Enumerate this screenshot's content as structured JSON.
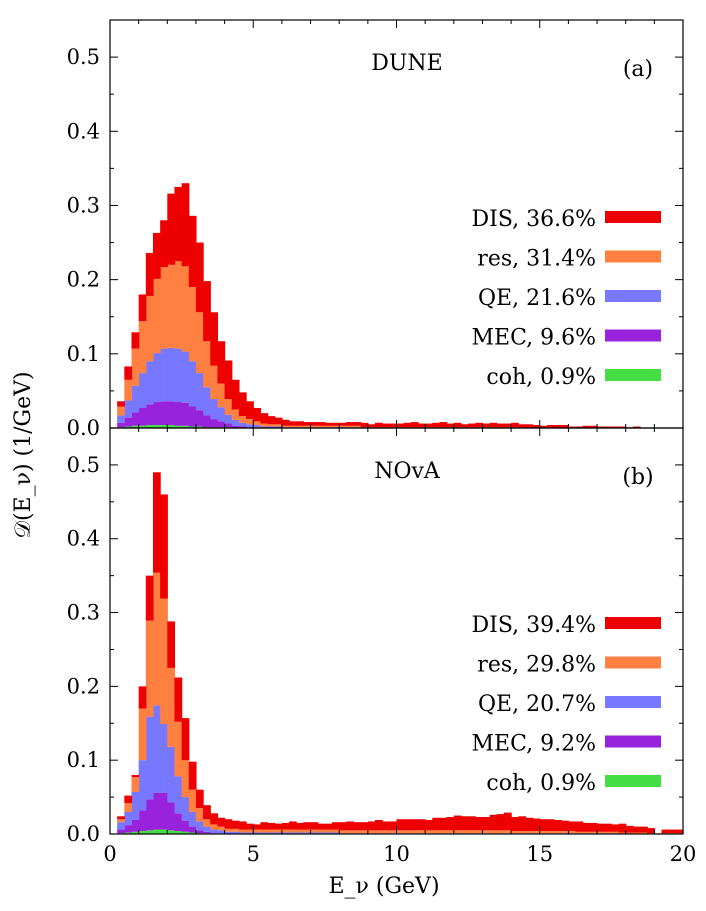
{
  "chart_data": [
    {
      "type": "bar",
      "stacked": true,
      "title": "DUNE",
      "panel_label": "(a)",
      "x_label": "E_ν (GeV)",
      "y_label": "𝒟(E_ν) (1/GeV)",
      "xlim": [
        0,
        20
      ],
      "ylim": [
        0,
        0.55
      ],
      "x_ticks": [
        0,
        5,
        10,
        15,
        20
      ],
      "y_ticks": [
        0.0,
        0.1,
        0.2,
        0.3,
        0.4,
        0.5
      ],
      "bin_width": 0.25,
      "x": [
        0.125,
        0.375,
        0.625,
        0.875,
        1.125,
        1.375,
        1.625,
        1.875,
        2.125,
        2.375,
        2.625,
        2.875,
        3.125,
        3.375,
        3.625,
        3.875,
        4.125,
        4.375,
        4.625,
        4.875,
        5.125,
        5.375,
        5.625,
        5.875,
        6.125,
        6.375,
        6.625,
        6.875,
        7.125,
        7.375,
        7.625,
        7.875,
        8.125,
        8.375,
        8.625,
        8.875,
        9.125,
        9.375,
        9.625,
        9.875,
        10.125,
        10.375,
        10.625,
        10.875,
        11.125,
        11.375,
        11.625,
        11.875,
        12.125,
        12.375,
        12.625,
        12.875,
        13.125,
        13.375,
        13.625,
        13.875,
        14.125,
        14.375,
        14.625,
        14.875,
        15.125,
        15.375,
        15.625,
        15.875,
        16.125,
        16.375,
        16.625,
        16.875,
        17.125,
        17.375,
        17.625,
        17.875,
        18.125,
        18.375,
        18.625,
        18.875,
        19.125,
        19.375,
        19.625,
        19.875
      ],
      "series": [
        {
          "name": "coh, 0.9%",
          "color": "#44dd44",
          "values": [
            0.0,
            0.001,
            0.002,
            0.003,
            0.003,
            0.004,
            0.004,
            0.004,
            0.004,
            0.003,
            0.003,
            0.002,
            0.002,
            0.001,
            0.001,
            0.001,
            0.001,
            0,
            0,
            0,
            0,
            0,
            0,
            0,
            0,
            0,
            0,
            0,
            0,
            0,
            0,
            0,
            0,
            0,
            0,
            0,
            0,
            0,
            0,
            0,
            0,
            0,
            0,
            0,
            0,
            0,
            0,
            0,
            0,
            0,
            0,
            0,
            0,
            0,
            0,
            0,
            0,
            0,
            0,
            0,
            0,
            0,
            0,
            0,
            0,
            0,
            0,
            0,
            0,
            0,
            0,
            0,
            0,
            0,
            0,
            0,
            0,
            0,
            0,
            0
          ]
        },
        {
          "name": "MEC, 9.6%",
          "color": "#9922dd",
          "values": [
            0.0,
            0.006,
            0.012,
            0.018,
            0.024,
            0.028,
            0.031,
            0.032,
            0.032,
            0.032,
            0.031,
            0.027,
            0.022,
            0.016,
            0.011,
            0.008,
            0.005,
            0.003,
            0.002,
            0.001,
            0.001,
            0,
            0,
            0,
            0,
            0,
            0,
            0,
            0,
            0,
            0,
            0,
            0,
            0,
            0,
            0,
            0,
            0,
            0,
            0,
            0,
            0,
            0,
            0,
            0,
            0,
            0,
            0,
            0,
            0,
            0,
            0,
            0,
            0,
            0,
            0,
            0,
            0,
            0,
            0,
            0,
            0,
            0,
            0,
            0,
            0,
            0,
            0,
            0,
            0,
            0,
            0,
            0,
            0,
            0,
            0,
            0,
            0,
            0,
            0
          ]
        },
        {
          "name": "QE, 21.6%",
          "color": "#7777ff",
          "values": [
            0.0,
            0.01,
            0.023,
            0.036,
            0.047,
            0.058,
            0.066,
            0.071,
            0.072,
            0.072,
            0.069,
            0.061,
            0.05,
            0.038,
            0.027,
            0.019,
            0.012,
            0.008,
            0.005,
            0.004,
            0.003,
            0.002,
            0.002,
            0.002,
            0.001,
            0.001,
            0.001,
            0.001,
            0.001,
            0.001,
            0.001,
            0.001,
            0.001,
            0.001,
            0.001,
            0,
            0,
            0,
            0,
            0,
            0,
            0,
            0,
            0,
            0,
            0,
            0,
            0,
            0,
            0,
            0,
            0,
            0,
            0,
            0,
            0,
            0,
            0,
            0,
            0,
            0,
            0,
            0,
            0,
            0,
            0,
            0,
            0,
            0,
            0,
            0,
            0,
            0,
            0,
            0,
            0,
            0,
            0,
            0,
            0
          ]
        },
        {
          "name": "res, 31.4%",
          "color": "#ff8040",
          "values": [
            0.0,
            0.012,
            0.028,
            0.05,
            0.07,
            0.088,
            0.1,
            0.11,
            0.112,
            0.118,
            0.115,
            0.1,
            0.082,
            0.062,
            0.045,
            0.032,
            0.021,
            0.014,
            0.009,
            0.007,
            0.005,
            0.004,
            0.003,
            0.003,
            0.002,
            0.002,
            0.002,
            0.002,
            0.002,
            0.002,
            0.002,
            0.002,
            0.002,
            0.002,
            0.002,
            0.001,
            0.001,
            0.001,
            0.001,
            0.001,
            0.001,
            0.001,
            0.001,
            0.001,
            0.001,
            0.001,
            0.001,
            0.001,
            0.001,
            0.001,
            0.001,
            0.001,
            0.001,
            0.001,
            0.001,
            0.001,
            0.001,
            0.001,
            0,
            0,
            0,
            0,
            0,
            0,
            0,
            0,
            0,
            0,
            0,
            0,
            0,
            0,
            0,
            0,
            0,
            0,
            0,
            0,
            0,
            0
          ]
        },
        {
          "name": "DIS, 36.6%",
          "color": "#ee0000",
          "values": [
            0.0,
            0.007,
            0.018,
            0.022,
            0.036,
            0.058,
            0.062,
            0.063,
            0.096,
            0.1,
            0.112,
            0.096,
            0.094,
            0.081,
            0.072,
            0.057,
            0.052,
            0.04,
            0.032,
            0.024,
            0.018,
            0.014,
            0.011,
            0.009,
            0.008,
            0.006,
            0.006,
            0.005,
            0.005,
            0.005,
            0.004,
            0.004,
            0.004,
            0.005,
            0.005,
            0.006,
            0.004,
            0.006,
            0.005,
            0.005,
            0.005,
            0.006,
            0.007,
            0.005,
            0.005,
            0.006,
            0.007,
            0.005,
            0.006,
            0.004,
            0.005,
            0.006,
            0.005,
            0.006,
            0.005,
            0.005,
            0.006,
            0.004,
            0.005,
            0.004,
            0.003,
            0.004,
            0.004,
            0.004,
            0.002,
            0.002,
            0.003,
            0.003,
            0.002,
            0.002,
            0.002,
            0.002,
            0.001,
            0.002,
            0,
            0,
            0,
            0,
            0,
            0
          ]
        }
      ]
    },
    {
      "type": "bar",
      "stacked": true,
      "title": "NOvA",
      "panel_label": "(b)",
      "x_label": "E_ν (GeV)",
      "y_label": "𝒟(E_ν) (1/GeV)",
      "xlim": [
        0,
        20
      ],
      "ylim": [
        0,
        0.55
      ],
      "x_ticks": [
        0,
        5,
        10,
        15,
        20
      ],
      "y_ticks": [
        0.0,
        0.1,
        0.2,
        0.3,
        0.4,
        0.5
      ],
      "bin_width": 0.25,
      "x": [
        0.125,
        0.375,
        0.625,
        0.875,
        1.125,
        1.375,
        1.625,
        1.875,
        2.125,
        2.375,
        2.625,
        2.875,
        3.125,
        3.375,
        3.625,
        3.875,
        4.125,
        4.375,
        4.625,
        4.875,
        5.125,
        5.375,
        5.625,
        5.875,
        6.125,
        6.375,
        6.625,
        6.875,
        7.125,
        7.375,
        7.625,
        7.875,
        8.125,
        8.375,
        8.625,
        8.875,
        9.125,
        9.375,
        9.625,
        9.875,
        10.125,
        10.375,
        10.625,
        10.875,
        11.125,
        11.375,
        11.625,
        11.875,
        12.125,
        12.375,
        12.625,
        12.875,
        13.125,
        13.375,
        13.625,
        13.875,
        14.125,
        14.375,
        14.625,
        14.875,
        15.125,
        15.375,
        15.625,
        15.875,
        16.125,
        16.375,
        16.625,
        16.875,
        17.125,
        17.375,
        17.625,
        17.875,
        18.125,
        18.375,
        18.625,
        18.875,
        19.125,
        19.375,
        19.625,
        19.875
      ],
      "series": [
        {
          "name": "coh, 0.9%",
          "color": "#44dd44",
          "values": [
            0.0,
            0.001,
            0.002,
            0.003,
            0.004,
            0.005,
            0.006,
            0.006,
            0.005,
            0.004,
            0.003,
            0.002,
            0.001,
            0.001,
            0,
            0,
            0,
            0,
            0,
            0,
            0,
            0,
            0,
            0,
            0,
            0,
            0,
            0,
            0,
            0,
            0,
            0,
            0,
            0,
            0,
            0,
            0,
            0,
            0,
            0,
            0,
            0,
            0,
            0,
            0,
            0,
            0,
            0,
            0,
            0,
            0,
            0,
            0,
            0,
            0,
            0,
            0,
            0,
            0,
            0,
            0,
            0,
            0,
            0,
            0,
            0,
            0,
            0,
            0,
            0,
            0,
            0,
            0,
            0,
            0,
            0,
            0,
            0,
            0,
            0
          ]
        },
        {
          "name": "MEC, 9.2%",
          "color": "#9922dd",
          "values": [
            0.0,
            0.005,
            0.01,
            0.016,
            0.028,
            0.042,
            0.05,
            0.05,
            0.038,
            0.024,
            0.015,
            0.008,
            0.004,
            0.002,
            0.001,
            0.001,
            0,
            0,
            0,
            0,
            0,
            0,
            0,
            0,
            0,
            0,
            0,
            0,
            0,
            0,
            0,
            0,
            0,
            0,
            0,
            0,
            0,
            0,
            0,
            0,
            0,
            0,
            0,
            0,
            0,
            0,
            0,
            0,
            0,
            0,
            0,
            0,
            0,
            0,
            0,
            0,
            0,
            0,
            0,
            0,
            0,
            0,
            0,
            0,
            0,
            0,
            0,
            0,
            0,
            0,
            0,
            0,
            0,
            0,
            0,
            0,
            0,
            0,
            0,
            0
          ]
        },
        {
          "name": "QE, 20.7%",
          "color": "#7777ff",
          "values": [
            0.0,
            0.01,
            0.018,
            0.038,
            0.068,
            0.112,
            0.118,
            0.093,
            0.075,
            0.05,
            0.032,
            0.02,
            0.012,
            0.007,
            0.005,
            0.004,
            0.003,
            0.003,
            0.002,
            0.002,
            0.002,
            0.002,
            0.002,
            0.002,
            0.002,
            0.002,
            0.002,
            0.002,
            0.002,
            0.002,
            0.002,
            0.002,
            0.001,
            0.001,
            0.001,
            0.001,
            0.001,
            0.001,
            0.001,
            0.001,
            0.001,
            0.001,
            0.001,
            0.001,
            0.001,
            0.001,
            0.001,
            0.001,
            0.001,
            0.001,
            0.001,
            0.001,
            0.001,
            0.001,
            0.001,
            0.001,
            0.001,
            0.001,
            0.001,
            0.001,
            0.001,
            0.001,
            0.001,
            0.001,
            0.001,
            0.001,
            0.001,
            0.001,
            0.001,
            0.001,
            0.001,
            0,
            0,
            0,
            0,
            0,
            0,
            0,
            0,
            0
          ]
        },
        {
          "name": "res, 29.8%",
          "color": "#ff8040",
          "values": [
            0.0,
            0.004,
            0.012,
            0.02,
            0.07,
            0.13,
            0.18,
            0.17,
            0.107,
            0.074,
            0.05,
            0.03,
            0.018,
            0.01,
            0.007,
            0.005,
            0.004,
            0.004,
            0.004,
            0.004,
            0.004,
            0.004,
            0.004,
            0.004,
            0.004,
            0.004,
            0.004,
            0.004,
            0.004,
            0.004,
            0.004,
            0.004,
            0.004,
            0.004,
            0.004,
            0.004,
            0.004,
            0.004,
            0.004,
            0.004,
            0.004,
            0.004,
            0.004,
            0.004,
            0.004,
            0.004,
            0.004,
            0.004,
            0.004,
            0.004,
            0.004,
            0.004,
            0.004,
            0.004,
            0.004,
            0.004,
            0.003,
            0.003,
            0.003,
            0.003,
            0.003,
            0.003,
            0.003,
            0.003,
            0.003,
            0.002,
            0.002,
            0.002,
            0.002,
            0.002,
            0.002,
            0.002,
            0.002,
            0.002,
            0.002,
            0.001,
            0.001,
            0.001,
            0.001,
            0.001
          ]
        },
        {
          "name": "DIS, 39.4%",
          "color": "#ee0000",
          "values": [
            0.0,
            0.004,
            0.01,
            0.003,
            0.03,
            0.061,
            0.136,
            0.141,
            0.063,
            0.06,
            0.057,
            0.038,
            0.025,
            0.019,
            0.015,
            0.012,
            0.013,
            0.011,
            0.011,
            0.008,
            0.007,
            0.01,
            0.009,
            0.008,
            0.009,
            0.011,
            0.009,
            0.01,
            0.01,
            0.008,
            0.008,
            0.01,
            0.011,
            0.012,
            0.011,
            0.011,
            0.012,
            0.014,
            0.012,
            0.012,
            0.015,
            0.015,
            0.015,
            0.015,
            0.014,
            0.017,
            0.017,
            0.018,
            0.02,
            0.019,
            0.019,
            0.018,
            0.018,
            0.021,
            0.022,
            0.024,
            0.019,
            0.02,
            0.018,
            0.017,
            0.016,
            0.016,
            0.015,
            0.014,
            0.013,
            0.014,
            0.012,
            0.012,
            0.011,
            0.011,
            0.01,
            0.012,
            0.009,
            0.008,
            0.008,
            0.007,
            0.0,
            0.005,
            0.005,
            0.005
          ]
        }
      ]
    }
  ]
}
